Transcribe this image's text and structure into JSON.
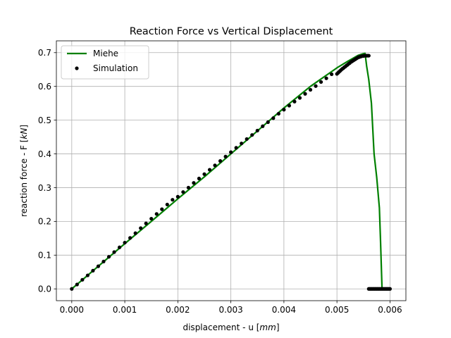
{
  "chart_data": {
    "type": "line",
    "title": "Reaction Force vs Vertical Displacement",
    "xlabel_text": "displacement - u [",
    "xlabel_unit": "mm",
    "xlabel_close": "]",
    "ylabel_text": "reaction force - F [",
    "ylabel_unit": "kN",
    "ylabel_close": "]",
    "xlim": [
      -0.00029,
      0.0063
    ],
    "ylim": [
      -0.035,
      0.735
    ],
    "xticks": [
      0.0,
      0.001,
      0.002,
      0.003,
      0.004,
      0.005,
      0.006
    ],
    "xtick_labels": [
      "0.000",
      "0.001",
      "0.002",
      "0.003",
      "0.004",
      "0.005",
      "0.006"
    ],
    "yticks": [
      0.0,
      0.1,
      0.2,
      0.3,
      0.4,
      0.5,
      0.6,
      0.7
    ],
    "ytick_labels": [
      "0.0",
      "0.1",
      "0.2",
      "0.3",
      "0.4",
      "0.5",
      "0.6",
      "0.7"
    ],
    "grid": true,
    "legend_position": "upper-left",
    "series": [
      {
        "name": "Miehe",
        "style": "line",
        "color": "#008000",
        "x": [
          0.0,
          0.0005,
          0.001,
          0.0015,
          0.002,
          0.0025,
          0.003,
          0.0035,
          0.004,
          0.0045,
          0.005,
          0.0052,
          0.0054,
          0.0055,
          0.00553,
          0.00556,
          0.0056,
          0.00565,
          0.0057,
          0.00575,
          0.0058,
          0.00582,
          0.00583,
          0.00584,
          0.00585
        ],
        "y": [
          0.0,
          0.067,
          0.134,
          0.2,
          0.267,
          0.332,
          0.4,
          0.468,
          0.536,
          0.6,
          0.655,
          0.674,
          0.692,
          0.697,
          0.698,
          0.66,
          0.62,
          0.55,
          0.4,
          0.33,
          0.24,
          0.15,
          0.1,
          0.05,
          0.0
        ]
      },
      {
        "name": "Simulation",
        "style": "markers",
        "color": "#000000",
        "x": [
          0.0,
          0.0001,
          0.0002,
          0.0003,
          0.0004,
          0.0005,
          0.0006,
          0.0007,
          0.0008,
          0.0009,
          0.001,
          0.0011,
          0.0012,
          0.0013,
          0.0014,
          0.0015,
          0.0016,
          0.0017,
          0.0018,
          0.0019,
          0.002,
          0.0021,
          0.0022,
          0.0023,
          0.0024,
          0.0025,
          0.0026,
          0.0027,
          0.0028,
          0.0029,
          0.003,
          0.0031,
          0.0032,
          0.0033,
          0.0034,
          0.0035,
          0.0036,
          0.0037,
          0.0038,
          0.0039,
          0.004,
          0.0041,
          0.0042,
          0.0043,
          0.0044,
          0.0045,
          0.0046,
          0.0047,
          0.0048,
          0.0049,
          0.005,
          0.00502,
          0.00504,
          0.00506,
          0.00508,
          0.0051,
          0.00512,
          0.00514,
          0.00516,
          0.00518,
          0.0052,
          0.00522,
          0.00524,
          0.00526,
          0.00528,
          0.0053,
          0.00532,
          0.00534,
          0.00536,
          0.00538,
          0.0054,
          0.00542,
          0.00544,
          0.00546,
          0.00548,
          0.0055,
          0.00552,
          0.00554,
          0.00556,
          0.00558,
          0.0056,
          0.0056,
          0.00562,
          0.00564,
          0.00566,
          0.00568,
          0.0057,
          0.00572,
          0.00574,
          0.00576,
          0.00578,
          0.0058,
          0.00582,
          0.00584,
          0.00586,
          0.00588,
          0.0059,
          0.00592,
          0.00594,
          0.00596,
          0.00598,
          0.006
        ],
        "y": [
          0.0,
          0.013,
          0.027,
          0.04,
          0.054,
          0.067,
          0.081,
          0.095,
          0.109,
          0.123,
          0.137,
          0.151,
          0.165,
          0.18,
          0.194,
          0.208,
          0.222,
          0.236,
          0.25,
          0.264,
          0.273,
          0.287,
          0.3,
          0.314,
          0.327,
          0.34,
          0.353,
          0.366,
          0.379,
          0.392,
          0.405,
          0.418,
          0.431,
          0.444,
          0.456,
          0.469,
          0.482,
          0.494,
          0.506,
          0.519,
          0.531,
          0.543,
          0.555,
          0.566,
          0.578,
          0.59,
          0.601,
          0.613,
          0.624,
          0.636,
          0.637,
          0.64,
          0.643,
          0.646,
          0.649,
          0.652,
          0.654,
          0.657,
          0.659,
          0.662,
          0.664,
          0.667,
          0.669,
          0.672,
          0.674,
          0.676,
          0.678,
          0.68,
          0.682,
          0.684,
          0.686,
          0.687,
          0.688,
          0.689,
          0.69,
          0.69,
          0.691,
          0.691,
          0.691,
          0.691,
          0.691,
          0.0,
          0.0,
          0.0,
          0.0,
          0.0,
          0.0,
          0.0,
          0.0,
          0.0,
          0.0,
          0.0,
          0.0,
          0.0,
          0.0,
          0.0,
          0.0,
          0.0,
          0.0,
          0.0,
          0.0,
          0.0
        ]
      }
    ]
  }
}
